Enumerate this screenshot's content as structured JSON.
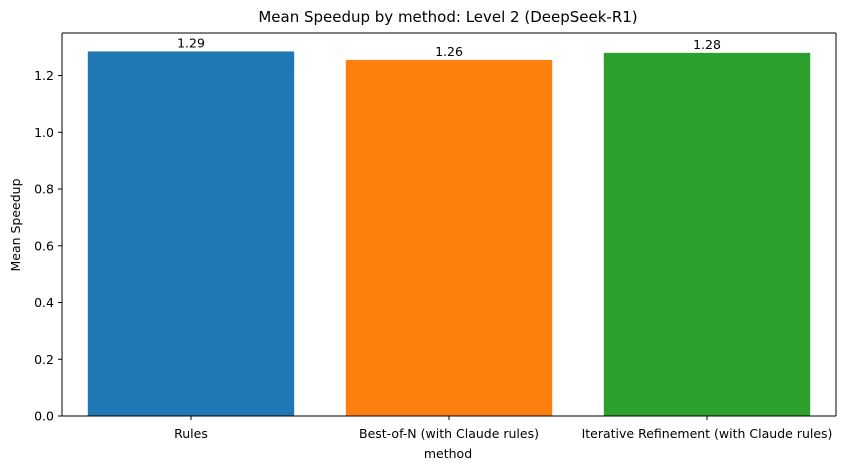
{
  "chart_data": {
    "type": "bar",
    "title": "Mean Speedup by method: Level 2 (DeepSeek-R1)",
    "xlabel": "method",
    "ylabel": "Mean Speedup",
    "categories": [
      "Rules",
      "Best-of-N (with Claude rules)",
      "Iterative Refinement (with Claude rules)"
    ],
    "values": [
      1.285,
      1.255,
      1.28
    ],
    "value_labels": [
      "1.29",
      "1.26",
      "1.28"
    ],
    "colors": [
      "#1f77b4",
      "#ff7f0e",
      "#2ca02c"
    ],
    "ylim": [
      0,
      1.35
    ],
    "yticks": [
      0.0,
      0.2,
      0.4,
      0.6,
      0.8,
      1.0,
      1.2
    ],
    "ytick_labels": [
      "0.0",
      "0.2",
      "0.4",
      "0.6",
      "0.8",
      "1.0",
      "1.2"
    ],
    "grid": false,
    "legend": "none"
  }
}
